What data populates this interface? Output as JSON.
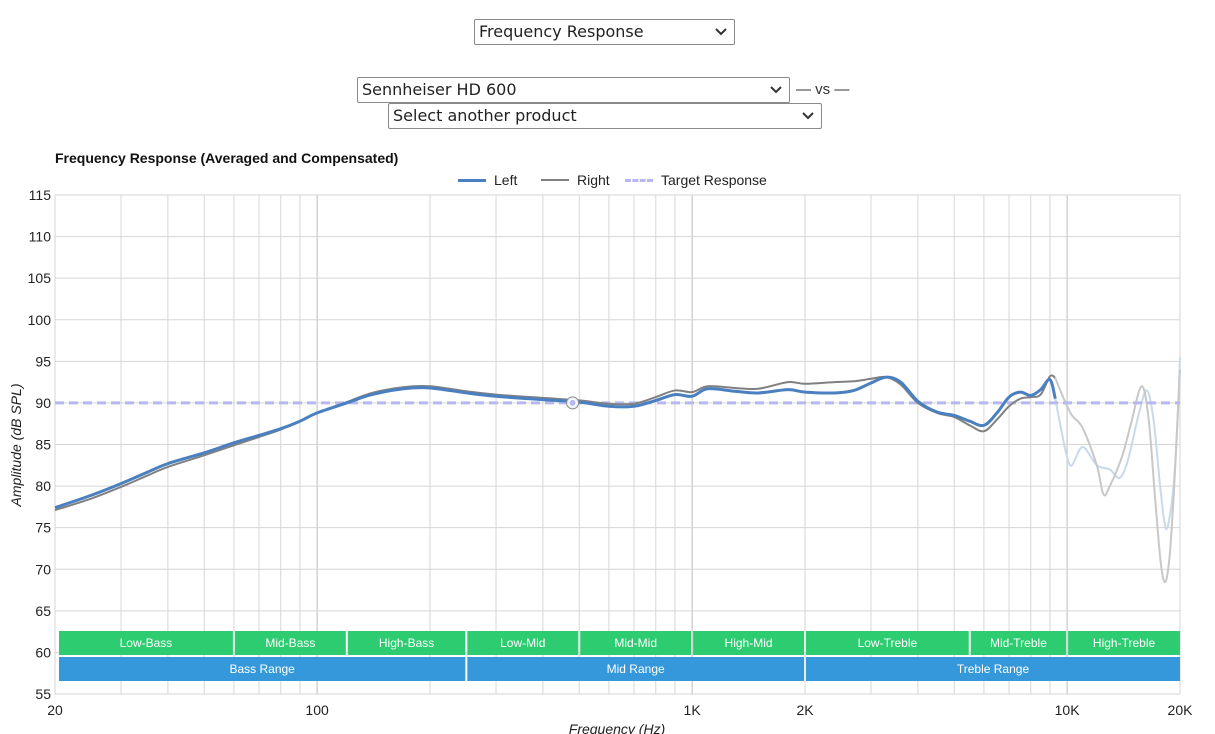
{
  "controls": {
    "graph_type_select": "Frequency Response",
    "product_select": "Sennheiser HD 600",
    "vs_label": "— vs —",
    "compare_select": "Select another product"
  },
  "chart_data": {
    "type": "line",
    "title": "Frequency Response (Averaged and Compensated)",
    "xlabel": "Frequency (Hz)",
    "ylabel": "Amplitude (dB SPL)",
    "x_scale": "log",
    "xlim": [
      20,
      20000
    ],
    "ylim": [
      55,
      115
    ],
    "x_ticks": [
      {
        "value": 20,
        "label": "20"
      },
      {
        "value": 100,
        "label": "100"
      },
      {
        "value": 1000,
        "label": "1K"
      },
      {
        "value": 2000,
        "label": "2K"
      },
      {
        "value": 10000,
        "label": "10K"
      },
      {
        "value": 20000,
        "label": "20K"
      }
    ],
    "y_ticks": [
      55,
      60,
      65,
      70,
      75,
      80,
      85,
      90,
      95,
      100,
      105,
      110,
      115
    ],
    "grid": true,
    "legend_position": "top-center",
    "colors": {
      "left": "#4a7fc0",
      "right": "#808080",
      "target": "#b8b8f0",
      "band_top": "#2ecc71",
      "band_bottom": "#3498db"
    },
    "series": [
      {
        "name": "Left",
        "style": "solid",
        "color": "#4a7fc0",
        "points": [
          [
            20,
            77.4
          ],
          [
            25,
            78.9
          ],
          [
            30,
            80.3
          ],
          [
            35,
            81.6
          ],
          [
            40,
            82.7
          ],
          [
            50,
            84.0
          ],
          [
            60,
            85.2
          ],
          [
            70,
            86.1
          ],
          [
            80,
            86.9
          ],
          [
            90,
            87.8
          ],
          [
            100,
            88.8
          ],
          [
            120,
            90.0
          ],
          [
            140,
            91.0
          ],
          [
            170,
            91.7
          ],
          [
            200,
            91.8
          ],
          [
            250,
            91.2
          ],
          [
            300,
            90.8
          ],
          [
            400,
            90.4
          ],
          [
            500,
            90.1
          ],
          [
            600,
            89.6
          ],
          [
            700,
            89.6
          ],
          [
            800,
            90.3
          ],
          [
            900,
            91.0
          ],
          [
            1000,
            90.8
          ],
          [
            1100,
            91.7
          ],
          [
            1300,
            91.4
          ],
          [
            1500,
            91.2
          ],
          [
            1800,
            91.6
          ],
          [
            2000,
            91.3
          ],
          [
            2400,
            91.2
          ],
          [
            2700,
            91.5
          ],
          [
            3000,
            92.4
          ],
          [
            3300,
            93.1
          ],
          [
            3600,
            92.5
          ],
          [
            4000,
            90.2
          ],
          [
            4500,
            88.9
          ],
          [
            5000,
            88.5
          ],
          [
            5500,
            87.8
          ],
          [
            6000,
            87.3
          ],
          [
            6500,
            88.8
          ],
          [
            7000,
            90.7
          ],
          [
            7500,
            91.3
          ],
          [
            8000,
            90.9
          ],
          [
            8500,
            91.6
          ],
          [
            9000,
            92.8
          ],
          [
            9300,
            90.5
          ]
        ]
      },
      {
        "name": "Right",
        "style": "solid",
        "color": "#808080",
        "points": [
          [
            20,
            77.1
          ],
          [
            25,
            78.5
          ],
          [
            30,
            79.9
          ],
          [
            35,
            81.2
          ],
          [
            40,
            82.3
          ],
          [
            50,
            83.7
          ],
          [
            60,
            84.9
          ],
          [
            70,
            85.9
          ],
          [
            80,
            86.8
          ],
          [
            90,
            87.8
          ],
          [
            100,
            88.8
          ],
          [
            120,
            90.1
          ],
          [
            140,
            91.2
          ],
          [
            170,
            91.9
          ],
          [
            200,
            92.0
          ],
          [
            250,
            91.4
          ],
          [
            300,
            91.0
          ],
          [
            400,
            90.6
          ],
          [
            500,
            90.3
          ],
          [
            600,
            89.9
          ],
          [
            700,
            89.9
          ],
          [
            800,
            90.7
          ],
          [
            900,
            91.5
          ],
          [
            1000,
            91.3
          ],
          [
            1100,
            92.0
          ],
          [
            1300,
            91.8
          ],
          [
            1500,
            91.7
          ],
          [
            1800,
            92.5
          ],
          [
            2000,
            92.3
          ],
          [
            2400,
            92.5
          ],
          [
            2700,
            92.6
          ],
          [
            3000,
            92.9
          ],
          [
            3300,
            93.1
          ],
          [
            3600,
            92.2
          ],
          [
            4000,
            90.0
          ],
          [
            4500,
            88.8
          ],
          [
            5000,
            88.3
          ],
          [
            5500,
            87.3
          ],
          [
            6000,
            86.6
          ],
          [
            6500,
            88.0
          ],
          [
            7000,
            89.6
          ],
          [
            7500,
            90.5
          ],
          [
            8000,
            90.7
          ],
          [
            8500,
            91.0
          ],
          [
            9000,
            93.2
          ],
          [
            9300,
            93.0
          ]
        ]
      },
      {
        "name": "Target Response",
        "style": "dashed",
        "color": "#b8b8f0",
        "points": [
          [
            20,
            90.0
          ],
          [
            20000,
            90.0
          ]
        ]
      }
    ],
    "faded_extension": [
      {
        "series": "Left",
        "points": [
          [
            9300,
            90.5
          ],
          [
            9700,
            86.2
          ],
          [
            10000,
            83.5
          ],
          [
            10300,
            82.5
          ],
          [
            11000,
            84.7
          ],
          [
            12000,
            82.5
          ],
          [
            13000,
            82.0
          ],
          [
            13800,
            81.0
          ],
          [
            14500,
            83.0
          ],
          [
            15500,
            88.5
          ],
          [
            16300,
            91.5
          ],
          [
            17000,
            88.0
          ],
          [
            17700,
            80.0
          ],
          [
            18300,
            75.0
          ],
          [
            18800,
            76.5
          ],
          [
            19300,
            81.0
          ],
          [
            19700,
            88.0
          ],
          [
            20000,
            95.5
          ]
        ]
      },
      {
        "series": "Right",
        "points": [
          [
            9300,
            93.0
          ],
          [
            9800,
            90.5
          ],
          [
            10300,
            88.5
          ],
          [
            11000,
            87.0
          ],
          [
            12000,
            82.5
          ],
          [
            12500,
            79.0
          ],
          [
            13000,
            80.0
          ],
          [
            14000,
            83.5
          ],
          [
            14800,
            87.5
          ],
          [
            15800,
            92.0
          ],
          [
            16500,
            88.0
          ],
          [
            17200,
            78.0
          ],
          [
            17800,
            70.5
          ],
          [
            18300,
            68.5
          ],
          [
            18800,
            72.0
          ],
          [
            19300,
            80.0
          ],
          [
            19700,
            88.0
          ],
          [
            20000,
            94.0
          ]
        ]
      }
    ],
    "marker": {
      "x": 480,
      "y": 90.0
    },
    "bands_top": [
      {
        "label": "Low-Bass",
        "from": 20,
        "to": 60
      },
      {
        "label": "Mid-Bass",
        "from": 60,
        "to": 120
      },
      {
        "label": "High-Bass",
        "from": 120,
        "to": 250
      },
      {
        "label": "Low-Mid",
        "from": 250,
        "to": 500
      },
      {
        "label": "Mid-Mid",
        "from": 500,
        "to": 1000
      },
      {
        "label": "High-Mid",
        "from": 1000,
        "to": 2000
      },
      {
        "label": "Low-Treble",
        "from": 2000,
        "to": 5500
      },
      {
        "label": "Mid-Treble",
        "from": 5500,
        "to": 10000
      },
      {
        "label": "High-Treble",
        "from": 10000,
        "to": 20000
      }
    ],
    "bands_bottom": [
      {
        "label": "Bass Range",
        "from": 20,
        "to": 250
      },
      {
        "label": "Mid Range",
        "from": 250,
        "to": 2000
      },
      {
        "label": "Treble Range",
        "from": 2000,
        "to": 20000
      }
    ]
  }
}
